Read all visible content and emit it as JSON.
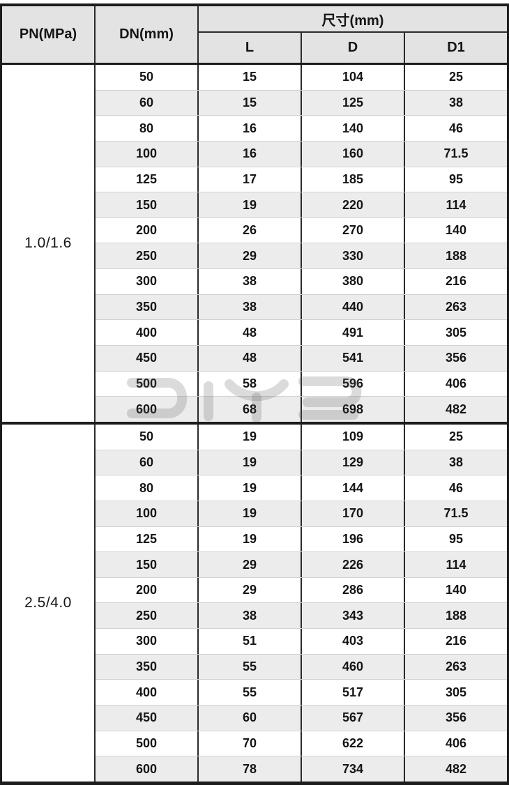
{
  "watermark": {
    "text": "DIYE"
  },
  "colors": {
    "header_bg": "#e3e3e3",
    "stripe_bg": "#ececec",
    "border_dark": "#1c1c1c",
    "row_divider": "#d2d2d2"
  },
  "chart_data": {
    "type": "table",
    "title": "",
    "header": {
      "pn": "PN(MPa)",
      "dn": "DN(mm)",
      "size_group": "尺寸(mm)",
      "sub_columns": [
        "L",
        "D",
        "D1"
      ]
    },
    "columns": [
      "PN(MPa)",
      "DN(mm)",
      "L",
      "D",
      "D1"
    ],
    "groups": [
      {
        "pn": "1.0/1.6",
        "rows": [
          [
            50,
            15,
            104,
            25
          ],
          [
            60,
            15,
            125,
            38
          ],
          [
            80,
            16,
            140,
            46
          ],
          [
            100,
            16,
            160,
            71.5
          ],
          [
            125,
            17,
            185,
            95
          ],
          [
            150,
            19,
            220,
            114
          ],
          [
            200,
            26,
            270,
            140
          ],
          [
            250,
            29,
            330,
            188
          ],
          [
            300,
            38,
            380,
            216
          ],
          [
            350,
            38,
            440,
            263
          ],
          [
            400,
            48,
            491,
            305
          ],
          [
            450,
            48,
            541,
            356
          ],
          [
            500,
            58,
            596,
            406
          ],
          [
            600,
            68,
            698,
            482
          ]
        ]
      },
      {
        "pn": "2.5/4.0",
        "rows": [
          [
            50,
            19,
            109,
            25
          ],
          [
            60,
            19,
            129,
            38
          ],
          [
            80,
            19,
            144,
            46
          ],
          [
            100,
            19,
            170,
            71.5
          ],
          [
            125,
            19,
            196,
            95
          ],
          [
            150,
            29,
            226,
            114
          ],
          [
            200,
            29,
            286,
            140
          ],
          [
            250,
            38,
            343,
            188
          ],
          [
            300,
            51,
            403,
            216
          ],
          [
            350,
            55,
            460,
            263
          ],
          [
            400,
            55,
            517,
            305
          ],
          [
            450,
            60,
            567,
            356
          ],
          [
            500,
            70,
            622,
            406
          ],
          [
            600,
            78,
            734,
            482
          ]
        ]
      }
    ]
  }
}
